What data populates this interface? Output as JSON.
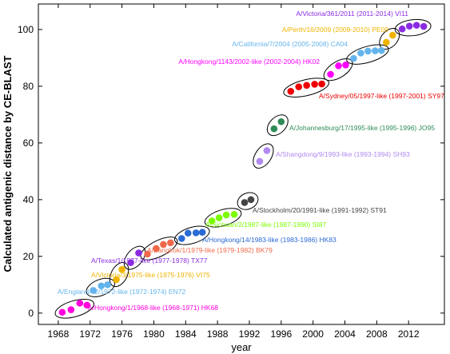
{
  "chart_data": {
    "type": "scatter",
    "xlabel": "year",
    "ylabel": "Calculated antigenic distance by CE-BLAST",
    "xlim": [
      1965.5,
      2016.5
    ],
    "ylim": [
      -4,
      109
    ],
    "xticks": [
      1968,
      1972,
      1976,
      1980,
      1984,
      1988,
      1992,
      1996,
      2000,
      2004,
      2008,
      2012
    ],
    "yticks": [
      0,
      20,
      40,
      60,
      80,
      100
    ],
    "grid": false,
    "clusters": [
      {
        "label": "A/Hongkong/1/1968-like (1968-1971) HK68",
        "color": "#ff00dd",
        "points": [
          [
            1968.5,
            0.3
          ],
          [
            1969.6,
            1.2
          ],
          [
            1970.7,
            3.5
          ],
          [
            1971.6,
            2.8
          ]
        ]
      },
      {
        "label": "A/England/42/1972-like (1972-1974) EN72",
        "color": "#64b4ec",
        "points": [
          [
            1972.4,
            8.0
          ],
          [
            1973.4,
            9.6
          ],
          [
            1974.2,
            10.0
          ]
        ]
      },
      {
        "label": "A/Victoria/3/1975-like (1975-1976) VI75",
        "color": "#f0b400",
        "points": [
          [
            1975.3,
            11.8
          ],
          [
            1976.0,
            15.4
          ]
        ]
      },
      {
        "label": "A/Texas/1/1977-like (1977-1978) TX77",
        "color": "#8a2be2",
        "points": [
          [
            1977.1,
            17.8
          ],
          [
            1978.1,
            21.2
          ]
        ]
      },
      {
        "label": "A/Bangkok/1/1979-like (1979-1982) BK79",
        "color": "#ef6a4a",
        "points": [
          [
            1979.2,
            20.8
          ],
          [
            1980.3,
            22.8
          ],
          [
            1981.2,
            24.2
          ],
          [
            1982.1,
            24.8
          ]
        ]
      },
      {
        "label": "A/Hongkong/14/1983-like (1983-1986) HK83",
        "color": "#2a6ad4",
        "points": [
          [
            1983.5,
            26.3
          ],
          [
            1984.3,
            28.2
          ],
          [
            1985.3,
            28.3
          ],
          [
            1986.1,
            28.5
          ]
        ]
      },
      {
        "label": "A/Sichuan/2/1987-like (1987-1990) SI87",
        "color": "#7cfc00",
        "points": [
          [
            1987.3,
            32.5
          ],
          [
            1988.2,
            33.6
          ],
          [
            1989.1,
            34.6
          ],
          [
            1990.1,
            34.8
          ]
        ]
      },
      {
        "label": "A/Stockholm/20/1991-like (1991-1992) ST91",
        "color": "#444444",
        "points": [
          [
            1991.4,
            39.0
          ],
          [
            1992.2,
            40.0
          ]
        ]
      },
      {
        "label": "A/Shangdong/9/1993-like (1993-1994) SH93",
        "color": "#b08af0",
        "points": [
          [
            1993.3,
            53.5
          ],
          [
            1994.2,
            57.3
          ]
        ]
      },
      {
        "label": "A/Johannesburg/17/1995-like (1995-1996) JO95",
        "color": "#2e8b57",
        "points": [
          [
            1995.1,
            65.0
          ],
          [
            1996.0,
            67.5
          ]
        ]
      },
      {
        "label": "A/Sydney/05/1997-like (1997-2001) SY97",
        "color": "#ee0000",
        "points": [
          [
            1997.2,
            78.2
          ],
          [
            1998.2,
            79.8
          ],
          [
            1999.2,
            80.3
          ],
          [
            2000.2,
            80.7
          ],
          [
            2001.1,
            80.8
          ]
        ]
      },
      {
        "label": "A/Hongkong/1143/2002-like (2002-2004) HK02",
        "color": "#ff00ff",
        "points": [
          [
            2002.2,
            84.2
          ],
          [
            2003.2,
            87.2
          ],
          [
            2004.1,
            87.5
          ]
        ]
      },
      {
        "label": "A/California/7/2004 (2005-2008) CA04",
        "color": "#64b4ec",
        "points": [
          [
            2005.1,
            89.8
          ],
          [
            2006.0,
            91.7
          ],
          [
            2006.9,
            92.4
          ],
          [
            2007.8,
            92.5
          ],
          [
            2008.6,
            92.6
          ]
        ]
      },
      {
        "label": "A/Perth/16/2009 (2009-2010) PE09",
        "color": "#f0b400",
        "points": [
          [
            2009.2,
            95.5
          ],
          [
            2010.0,
            98.0
          ]
        ]
      },
      {
        "label": "A/Victoria/361/2011 (2011-2014) VI11",
        "color": "#8a2be2",
        "points": [
          [
            2011.2,
            100.2
          ],
          [
            2012.1,
            101.2
          ],
          [
            2013.0,
            101.5
          ],
          [
            2013.9,
            101.1
          ]
        ]
      }
    ]
  }
}
